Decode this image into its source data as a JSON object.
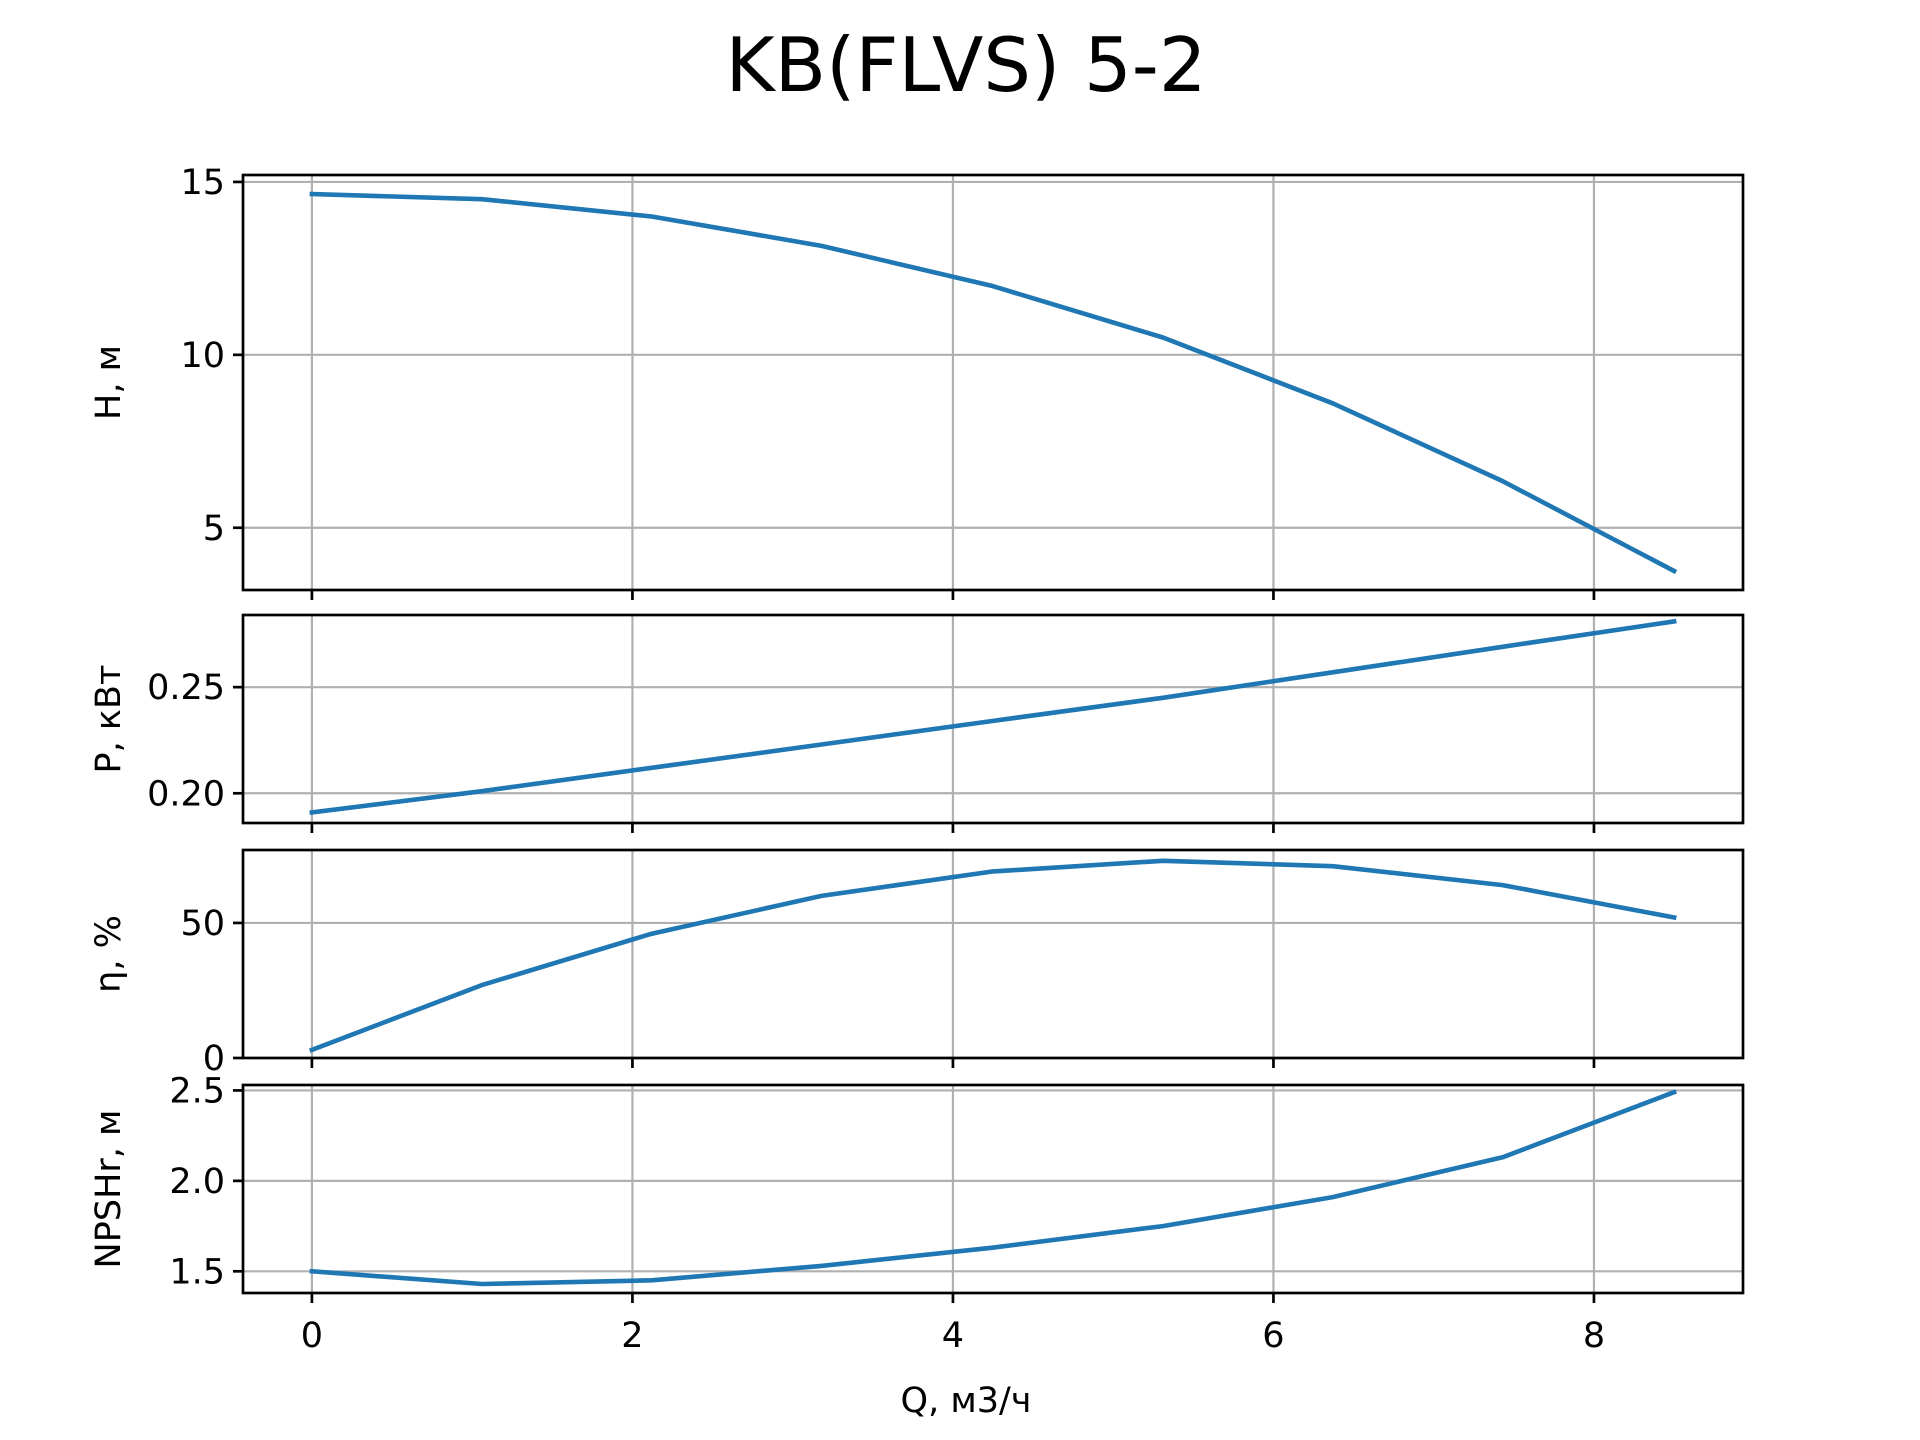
{
  "chart_data": {
    "type": "line",
    "title": "KB(FLVS) 5-2",
    "xlabel": "Q, м3/ч",
    "series_color": "#1f77b4",
    "grid": true,
    "xlim": [
      -0.43,
      8.93
    ],
    "xticks": [
      0,
      2,
      4,
      6,
      8
    ],
    "xtick_labels": [
      "0",
      "2",
      "4",
      "6",
      "8"
    ],
    "x": [
      0,
      1.06,
      2.12,
      3.18,
      4.24,
      5.31,
      6.37,
      7.43,
      8.5
    ],
    "panels": [
      {
        "ylabel": "H, м",
        "ylim": [
          3.2,
          15.2
        ],
        "yticks": [
          5,
          10,
          15
        ],
        "ytick_labels": [
          "5",
          "10",
          "15"
        ],
        "values": [
          14.65,
          14.5,
          14.0,
          13.15,
          12.0,
          10.5,
          8.6,
          6.35,
          3.75
        ]
      },
      {
        "ylabel": "P, кВт",
        "ylim": [
          0.186,
          0.284
        ],
        "yticks": [
          0.2,
          0.25
        ],
        "ytick_labels": [
          "0.20",
          "0.25"
        ],
        "values": [
          0.191,
          0.201,
          0.212,
          0.223,
          0.234,
          0.245,
          0.257,
          0.269,
          0.281
        ]
      },
      {
        "ylabel": "η, %",
        "ylim": [
          0,
          77
        ],
        "yticks": [
          0,
          50
        ],
        "ytick_labels": [
          "0",
          "50"
        ],
        "values": [
          3,
          27,
          46,
          60,
          69,
          73,
          71,
          64,
          52
        ]
      },
      {
        "ylabel": "NPSHr, м",
        "ylim": [
          1.38,
          2.53
        ],
        "yticks": [
          1.5,
          2.0,
          2.5
        ],
        "ytick_labels": [
          "1.5",
          "2.0",
          "2.5"
        ],
        "values": [
          1.5,
          1.43,
          1.45,
          1.53,
          1.63,
          1.75,
          1.91,
          2.13,
          2.49
        ]
      }
    ]
  }
}
